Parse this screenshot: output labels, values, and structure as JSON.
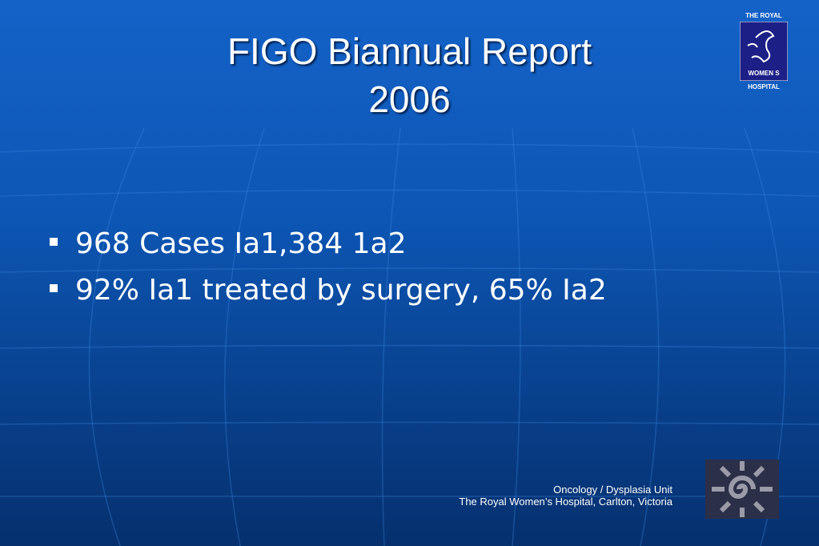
{
  "slide": {
    "title": [
      "FIGO Biannual Report",
      "2006"
    ],
    "bullets": [
      "968 Cases Ia1,384 1a2",
      "92% Ia1 treated by surgery, 65% Ia2"
    ],
    "footer": [
      "Oncology / Dysplasia Unit",
      "The Royal Women’s Hospital, Carlton, Victoria"
    ],
    "logo": {
      "top": "THE ROYAL",
      "middle": "WOMEN S",
      "bottom": "HOSPITAL"
    }
  }
}
